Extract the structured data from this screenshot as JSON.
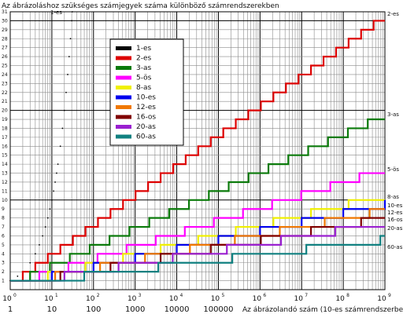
{
  "chart_data": {
    "type": "line",
    "title": "Az ábrázoláshoz szükséges számjegyek száma különböző számrendszerekben",
    "xlabel": "Az ábrázolandó szám (10-es számrendszerben)",
    "ylabel": "",
    "x_scale": "log",
    "xlim": [
      1,
      1000000000
    ],
    "ylim": [
      0,
      31
    ],
    "grid": true,
    "legend_position": "top-center",
    "x_ticks": [
      {
        "value": 1,
        "exp_label": "10",
        "exp_sup": "0",
        "plain_label": "1"
      },
      {
        "value": 10,
        "exp_label": "10",
        "exp_sup": "1",
        "plain_label": "10"
      },
      {
        "value": 100,
        "exp_label": "10",
        "exp_sup": "2",
        "plain_label": "100"
      },
      {
        "value": 1000,
        "exp_label": "10",
        "exp_sup": "3",
        "plain_label": "1000"
      },
      {
        "value": 10000,
        "exp_label": "10",
        "exp_sup": "4",
        "plain_label": "10000"
      },
      {
        "value": 100000,
        "exp_label": "10",
        "exp_sup": "5",
        "plain_label": "100000"
      },
      {
        "value": 1000000,
        "exp_label": "10",
        "exp_sup": "6",
        "plain_label": ""
      },
      {
        "value": 10000000,
        "exp_label": "10",
        "exp_sup": "7",
        "plain_label": ""
      },
      {
        "value": 100000000,
        "exp_label": "10",
        "exp_sup": "8",
        "plain_label": ""
      },
      {
        "value": 1000000000,
        "exp_label": "10",
        "exp_sup": "9",
        "plain_label": ""
      }
    ],
    "y_ticks": [
      1,
      2,
      3,
      4,
      5,
      6,
      7,
      8,
      9,
      10,
      11,
      12,
      13,
      14,
      15,
      16,
      17,
      18,
      19,
      20,
      21,
      22,
      23,
      24,
      25,
      26,
      27,
      28,
      29,
      30,
      31
    ],
    "series": [
      {
        "name": "1-es",
        "base": 1,
        "color": "#000000",
        "end_label": "1-es"
      },
      {
        "name": "2-es",
        "base": 2,
        "color": "#dd0000",
        "end_label": "2-es"
      },
      {
        "name": "3-as",
        "base": 3,
        "color": "#0a7a0a",
        "end_label": "3-as"
      },
      {
        "name": "5-ös",
        "base": 5,
        "color": "#ff00ff",
        "end_label": "5-ös"
      },
      {
        "name": "8-as",
        "base": 8,
        "color": "#f0f000",
        "end_label": "8-as"
      },
      {
        "name": "10-es",
        "base": 10,
        "color": "#0000ee",
        "end_label": "10-es"
      },
      {
        "name": "12-es",
        "base": 12,
        "color": "#f07800",
        "end_label": "12-es"
      },
      {
        "name": "16-os",
        "base": 16,
        "color": "#800000",
        "end_label": "16-os"
      },
      {
        "name": "20-as",
        "base": 20,
        "color": "#9a20d0",
        "end_label": "20-as"
      },
      {
        "name": "60-as",
        "base": 60,
        "color": "#108080",
        "end_label": "60-as"
      }
    ]
  }
}
